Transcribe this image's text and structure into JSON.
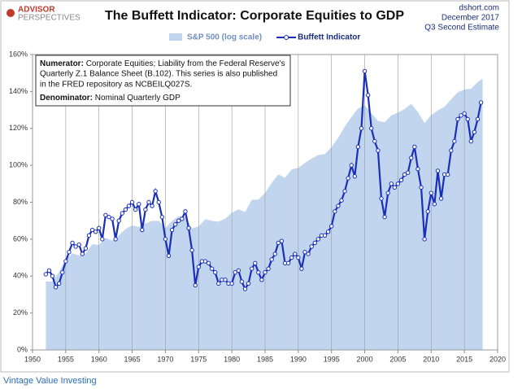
{
  "chart_data": {
    "type": "line",
    "title": "The Buffett Indicator: Corporate Equities to GDP",
    "logo": [
      "ADVISOR",
      "PERSPECTIVES"
    ],
    "source": [
      "dshort.com",
      "December 2017",
      "Q3 Second Estimate"
    ],
    "annotation": {
      "numerator_label": "Numerator:",
      "numerator_lines": [
        "Corporate Equities; Liability from the Federal Reserve's",
        "Quarterly Z.1 Balance Sheet (B.102). This series is also published",
        "in the FRED repository  as NCBEILQ027S."
      ],
      "denominator_label": "Denominator:",
      "denominator_text": "Nominal Quarterly GDP"
    },
    "xlim": [
      1950,
      2020
    ],
    "xticks": [
      1950,
      1955,
      1960,
      1965,
      1970,
      1975,
      1980,
      1985,
      1990,
      1995,
      2000,
      2005,
      2010,
      2015,
      2020
    ],
    "ylim": [
      0,
      160
    ],
    "yticks": [
      {
        "value": 0,
        "label": "0%"
      },
      {
        "value": 20,
        "label": "20%"
      },
      {
        "value": 40,
        "label": "40%"
      },
      {
        "value": 60,
        "label": "60%"
      },
      {
        "value": 80,
        "label": "80%"
      },
      {
        "value": 100,
        "label": "100%"
      },
      {
        "value": 120,
        "label": "120%"
      },
      {
        "value": 140,
        "label": "140%"
      },
      {
        "value": 160,
        "label": "160%"
      }
    ],
    "y2lim": [
      4.9,
      4640
    ],
    "y2log": true,
    "grid": "x",
    "series": [
      {
        "name": "S&P 500 (log scale)",
        "kind": "area",
        "axis": "y2",
        "color": "#c2d5ef",
        "x": [
          1952,
          1953,
          1954,
          1955,
          1956,
          1957,
          1958,
          1959,
          1960,
          1961,
          1962,
          1963,
          1964,
          1965,
          1966,
          1967,
          1968,
          1969,
          1970,
          1971,
          1972,
          1973,
          1974,
          1975,
          1976,
          1977,
          1978,
          1979,
          1980,
          1981,
          1982,
          1983,
          1984,
          1985,
          1986,
          1987,
          1988,
          1989,
          1990,
          1991,
          1992,
          1993,
          1994,
          1995,
          1996,
          1997,
          1998,
          1999,
          2000,
          2001,
          2002,
          2003,
          2004,
          2005,
          2006,
          2007,
          2008,
          2009,
          2010,
          2011,
          2012,
          2013,
          2014,
          2015,
          2016,
          2017,
          2017.75
        ],
        "values": [
          24,
          24,
          30,
          40,
          46,
          44,
          46,
          57,
          56,
          66,
          62,
          70,
          81,
          88,
          85,
          92,
          98,
          98,
          83,
          98,
          109,
          107,
          82,
          86,
          102,
          98,
          96,
          103,
          118,
          128,
          120,
          160,
          160,
          187,
          236,
          287,
          266,
          323,
          335,
          376,
          415,
          451,
          460,
          542,
          671,
          873,
          1086,
          1327,
          1427,
          1194,
          993,
          965,
          1131,
          1207,
          1310,
          1477,
          1220,
          948,
          1140,
          1268,
          1379,
          1643,
          1931,
          2061,
          2095,
          2449,
          2650
        ]
      },
      {
        "name": "Buffett Indicator",
        "kind": "line",
        "color": "#1a2fb8",
        "x": [
          1952,
          1952.5,
          1953,
          1953.5,
          1954,
          1954.5,
          1955,
          1955.5,
          1956,
          1956.5,
          1957,
          1957.5,
          1958,
          1958.5,
          1959,
          1959.5,
          1960,
          1960.5,
          1961,
          1961.5,
          1962,
          1962.5,
          1963,
          1963.5,
          1964,
          1964.5,
          1965,
          1965.5,
          1966,
          1966.5,
          1967,
          1967.5,
          1968,
          1968.5,
          1969,
          1969.5,
          1970,
          1970.5,
          1971,
          1971.5,
          1972,
          1972.5,
          1973,
          1973.5,
          1974,
          1974.5,
          1975,
          1975.5,
          1976,
          1976.5,
          1977,
          1977.5,
          1978,
          1978.5,
          1979,
          1979.5,
          1980,
          1980.5,
          1981,
          1981.5,
          1982,
          1982.5,
          1983,
          1983.5,
          1984,
          1984.5,
          1985,
          1985.5,
          1986,
          1986.5,
          1987,
          1987.5,
          1988,
          1988.5,
          1989,
          1989.5,
          1990,
          1990.5,
          1991,
          1991.5,
          1992,
          1992.5,
          1993,
          1993.5,
          1994,
          1994.5,
          1995,
          1995.5,
          1996,
          1996.5,
          1997,
          1997.5,
          1998,
          1998.5,
          1999,
          1999.5,
          2000,
          2000.5,
          2001,
          2001.5,
          2002,
          2002.5,
          2003,
          2003.5,
          2004,
          2004.5,
          2005,
          2005.5,
          2006,
          2006.5,
          2007,
          2007.5,
          2008,
          2008.5,
          2009,
          2009.5,
          2010,
          2010.5,
          2011,
          2011.5,
          2012,
          2012.5,
          2013,
          2013.5,
          2014,
          2014.5,
          2015,
          2015.5,
          2016,
          2016.5,
          2017,
          2017.5
        ],
        "values": [
          41,
          43,
          40,
          34,
          36,
          42,
          48,
          53,
          58,
          56,
          57,
          52,
          55,
          62,
          65,
          64,
          66,
          60,
          73,
          72,
          71,
          60,
          70,
          74,
          76,
          78,
          80,
          76,
          79,
          65,
          76,
          80,
          78,
          86,
          80,
          72,
          60,
          51,
          65,
          68,
          70,
          71,
          75,
          66,
          54,
          35,
          45,
          48,
          48,
          47,
          44,
          42,
          36,
          38,
          38,
          36,
          36,
          42,
          43,
          37,
          33,
          36,
          44,
          47,
          42,
          38,
          42,
          44,
          49,
          52,
          58,
          59,
          47,
          47,
          50,
          52,
          50,
          44,
          53,
          52,
          56,
          58,
          60,
          62,
          62,
          64,
          67,
          75,
          78,
          81,
          86,
          93,
          100,
          94,
          110,
          120,
          151,
          138,
          120,
          113,
          108,
          82,
          72,
          85,
          90,
          88,
          90,
          92,
          95,
          96,
          104,
          110,
          98,
          88,
          60,
          75,
          85,
          79,
          97,
          82,
          95,
          95,
          108,
          113,
          125,
          127,
          128,
          125,
          113,
          118,
          125,
          134
        ]
      }
    ]
  },
  "footer": "Vintage Value Investing"
}
